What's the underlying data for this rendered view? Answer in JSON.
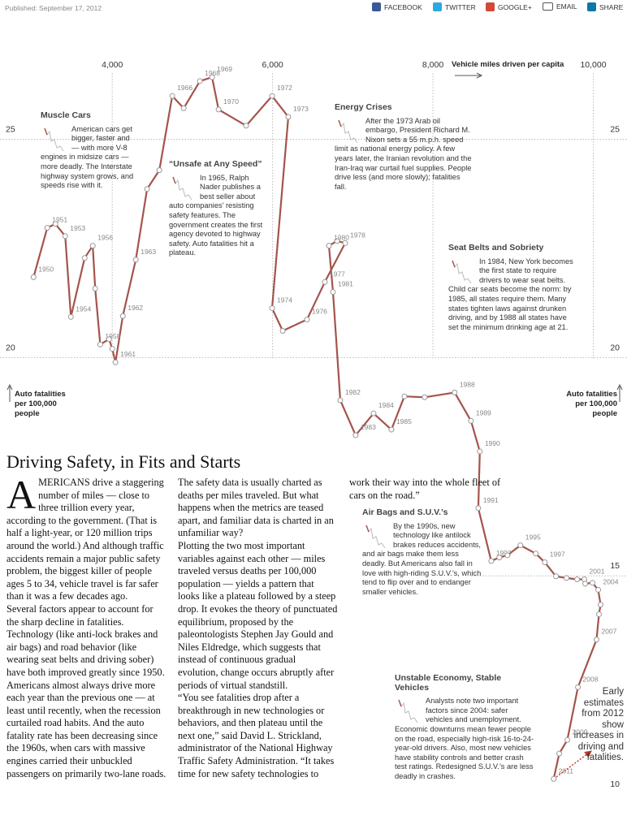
{
  "header": {
    "published": "Published: September 17, 2012",
    "share": [
      "FACEBOOK",
      "TWITTER",
      "GOOGLE+",
      "EMAIL",
      "SHARE"
    ]
  },
  "chart_data": {
    "type": "scatter",
    "connected": true,
    "x_label": "Vehicle miles driven per capita",
    "y_label": "Auto fatalities per 100,000 people",
    "color": "#a4544c",
    "x": [
      3018,
      3190,
      3291,
      3413,
      3484,
      3656,
      3757,
      3787,
      3850,
      3960,
      4000,
      4040,
      4132,
      4294,
      4435,
      4587,
      4749,
      4891,
      5093,
      5245,
      5326,
      5670,
      5994,
      6196,
      5994,
      6126,
      6429,
      6652,
      6905,
      6804,
      6703,
      6753,
      6844,
      7036,
      7259,
      7482,
      7644,
      7897,
      8271,
      8474,
      8585,
      8565,
      8727,
      8828,
      8929,
      9091,
      9283,
      9395,
      9534,
      9666,
      9798,
      9889,
      9899,
      9990,
      10061,
      10091,
      10071,
      10040,
      9808,
      9676,
      9575,
      9506
    ],
    "values": [
      21.84,
      22.97,
      23.06,
      22.78,
      20.93,
      22.28,
      22.56,
      21.58,
      20.3,
      20.42,
      20.2,
      19.89,
      20.95,
      22.24,
      23.86,
      24.29,
      25.99,
      25.71,
      26.33,
      26.42,
      25.68,
      25.31,
      25.99,
      25.51,
      21.13,
      20.61,
      20.87,
      21.73,
      22.62,
      22.67,
      22.56,
      21.5,
      19.02,
      18.22,
      18.72,
      18.35,
      19.11,
      19.09,
      19.2,
      18.55,
      17.85,
      16.55,
      15.34,
      15.42,
      15.47,
      15.7,
      15.51,
      15.31,
      14.99,
      14.95,
      14.92,
      14.92,
      14.82,
      14.84,
      14.68,
      14.34,
      14.12,
      13.54,
      12.45,
      11.24,
      10.93,
      10.35
    ],
    "labels": [
      "1950",
      "1951",
      null,
      "1953",
      "1954",
      null,
      "1956",
      null,
      "1958",
      null,
      null,
      "1961",
      "1962",
      "1963",
      null,
      null,
      "1966",
      null,
      "1968",
      "1969",
      "1970",
      null,
      "1972",
      "1973",
      "1974",
      null,
      "1976",
      "1977",
      "1978",
      null,
      "1980",
      "1981",
      "1982",
      "1983",
      "1984",
      "1985",
      null,
      null,
      "1988",
      "1989",
      "1990",
      "1991",
      "1992",
      null,
      null,
      "1995",
      null,
      "1997",
      null,
      null,
      null,
      "2001",
      null,
      null,
      "2004",
      null,
      null,
      "2007",
      "2008",
      "2009",
      null,
      "2011"
    ],
    "estimate": {
      "x": 9970,
      "y": 10.98
    },
    "xlim": [
      2600,
      10400
    ],
    "ylim": [
      9.5,
      27.5
    ],
    "xticks": [
      {
        "value": 4000,
        "label": "4,000"
      },
      {
        "value": 6000,
        "label": "6,000"
      },
      {
        "value": 8000,
        "label": "8,000"
      },
      {
        "value": 10000,
        "label": "10,000"
      }
    ],
    "yticks": [
      10,
      15,
      20,
      25
    ],
    "grid": true,
    "annotations": [
      {
        "title": "Muscle Cars",
        "text": "American cars get bigger, faster and — with more V-8 engines in midsize cars — more deadly. The Interstate highway system grows, and speeds rise with it."
      },
      {
        "title": "“Unsafe at Any Speed”",
        "text": "In 1965, Ralph Nader publishes a best seller about auto companies’ resisting safety features. The government creates the first agency devoted to highway safety. Auto fatalities hit a plateau."
      },
      {
        "title": "Energy Crises",
        "text": "After the 1973 Arab oil embargo, President Richard M. Nixon sets a 55 m.p.h. speed limit as national energy policy. A few years later, the Iranian revolution and the Iran-Iraq war curtail fuel supplies. People drive less (and more slowly); fatalities fall."
      },
      {
        "title": "Seat Belts and Sobriety",
        "text": "In 1984, New York becomes the first state to require drivers to wear seat belts. Child car seats become the norm: by 1985, all states require them. Many states tighten laws against drunken driving, and by 1988 all states have set the minimum drinking age at 21."
      },
      {
        "title": "Air Bags and S.U.V.’s",
        "text": "By the 1990s, new technology like antilock brakes reduces accidents, and air bags make them less deadly. But Americans also fall in love with high-riding S.U.V.’s, which tend to flip over and to endanger smaller vehicles."
      },
      {
        "title": "Unstable Economy, Stable Vehicles",
        "text": "Analysts note two important factors since 2004: safer vehicles and unemployment. Economic downturns mean fewer people on the road, especially high-risk 16-to-24-year-old drivers. Also, most new vehicles have stability controls and better crash test ratings. Redesigned S.U.V.’s are less deadly in crashes."
      }
    ],
    "note": "Early estimates from 2012 show increases in driving and fatalities."
  },
  "article": {
    "title": "Driving Safety, in Fits and Starts",
    "paragraphs": [
      "AMERICANS drive a staggering number of miles — close to three trillion every year, according to the government. (That is half a light-year, or 120 million trips around the world.) And although traffic accidents remain a major public safety problem, the biggest killer of people ages 5 to 34, vehicle travel is far safer than it was a few decades ago.",
      "Several factors appear to account for the sharp decline in fatalities. Technology (like anti-lock brakes and air bags) and road behavior (like wearing seat belts and driving sober) have both improved greatly since 1950.",
      "Americans almost always drive more each year than the previous one — at least until recently, when the recession curtailed road habits. And the auto fatality rate has been decreasing since the 1960s, when cars with massive engines carried their unbuckled passengers on primarily two-lane roads.",
      "The safety data is usually charted as deaths per miles traveled. But what happens when the metrics are teased apart, and familiar data is charted in an unfamiliar way?",
      "Plotting the two most important variables against each other — miles traveled versus deaths per 100,000 population — yields a pattern that looks like a plateau followed by a steep drop. It evokes the theory of punctuated equilibrium, proposed by the paleontologists Stephen Jay Gould and Niles Eldredge, which suggests that instead of continuous gradual evolution, change occurs abruptly after periods of virtual standstill.",
      "“You see fatalities drop after a breakthrough in new technologies or behaviors, and then plateau until the next one,” said David L. Strickland, administrator of the National Highway Traffic Safety Administration. “It takes time for new safety technologies to work their way into the whole fleet of cars on the road.”"
    ]
  }
}
